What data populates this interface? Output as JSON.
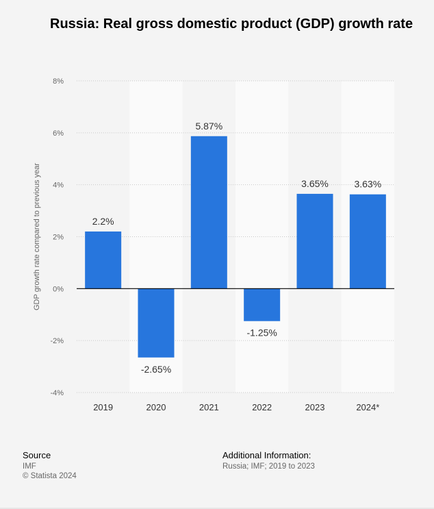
{
  "title": "Russia: Real gross domestic product (GDP) growth rate",
  "chart_data": {
    "type": "bar",
    "categories": [
      "2019",
      "2020",
      "2021",
      "2022",
      "2023",
      "2024*"
    ],
    "values": [
      2.2,
      -2.65,
      5.87,
      -1.25,
      3.65,
      3.63
    ],
    "value_labels": [
      "2.2%",
      "-2.65%",
      "5.87%",
      "-1.25%",
      "3.65%",
      "3.63%"
    ],
    "ylabel": "GDP growth rate compared to previous year",
    "ylim": [
      -4,
      8
    ],
    "yticks": [
      8,
      6,
      4,
      2,
      0,
      -2,
      -4
    ],
    "ytick_labels": [
      "8%",
      "6%",
      "4%",
      "2%",
      "0%",
      "-2%",
      "-4%"
    ],
    "grid": true,
    "bar_color": "#2776dd"
  },
  "footer": {
    "source_heading": "Source",
    "source_name": "IMF",
    "copyright": "© Statista 2024",
    "info_heading": "Additional Information:",
    "info_text": "Russia; IMF; 2019 to 2023"
  }
}
